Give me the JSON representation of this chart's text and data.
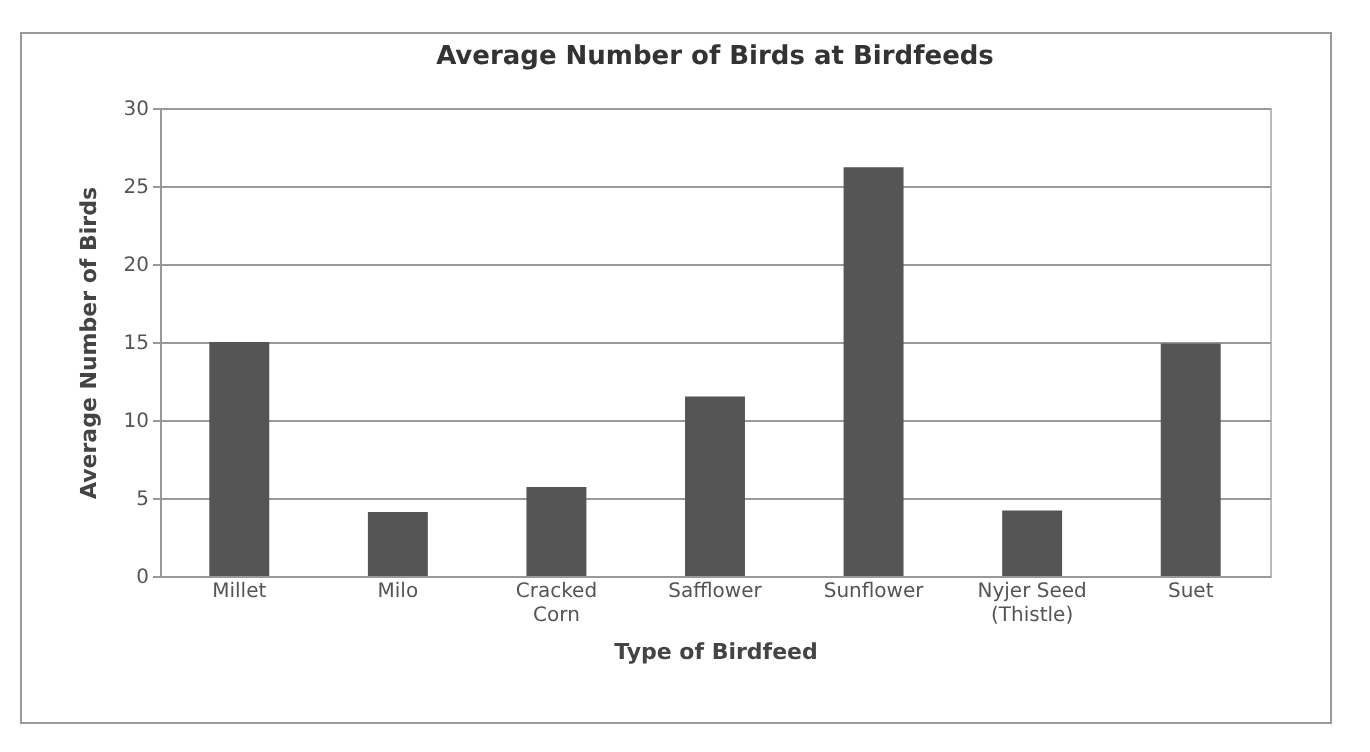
{
  "chart_data": {
    "type": "bar",
    "title": "Average Number of Birds at Birdfeeds",
    "xlabel": "Type of Birdfeed",
    "ylabel": "Average Number of Birds",
    "categories": [
      "Millet",
      "Milo",
      "Cracked Corn",
      "Safflower",
      "Sunflower",
      "Nyjer Seed (Thistle)",
      "Suet"
    ],
    "values": [
      15,
      4.1,
      5.7,
      11.5,
      26.2,
      4.2,
      14.9
    ],
    "color": "#555555",
    "ylim": [
      0,
      30
    ],
    "yticks": [
      0,
      5,
      10,
      15,
      20,
      25,
      30
    ],
    "grid": "y"
  }
}
